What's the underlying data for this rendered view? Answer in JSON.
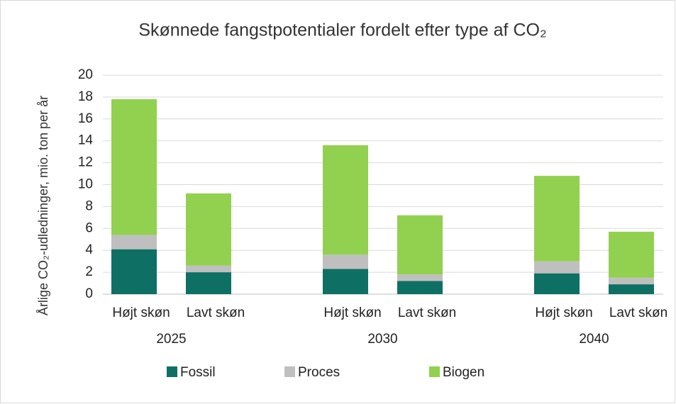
{
  "chart_data": {
    "type": "stacked_bar",
    "title": "Skønnede fangstpotentialer fordelt efter type af CO₂",
    "y_label": "Årlige CO₂-udledninger, mio. ton per år",
    "groups": [
      "2025",
      "2030",
      "2040"
    ],
    "categories": [
      "Højt skøn",
      "Lavt skøn",
      "Højt skøn",
      "Lavt skøn",
      "Højt skøn",
      "Lavt skøn"
    ],
    "series": [
      {
        "name": "Fossil",
        "color": "#0e7064",
        "values": [
          4.1,
          2.0,
          2.3,
          1.2,
          1.9,
          0.9
        ]
      },
      {
        "name": "Proces",
        "color": "#bfbfbf",
        "values": [
          1.3,
          0.6,
          1.3,
          0.6,
          1.1,
          0.6
        ]
      },
      {
        "name": "Biogen",
        "color": "#92d050",
        "values": [
          12.4,
          6.6,
          10.0,
          5.4,
          7.8,
          4.2
        ]
      }
    ],
    "ylim": [
      0,
      20
    ],
    "yticks": [
      0,
      2,
      4,
      6,
      8,
      10,
      12,
      14,
      16,
      18,
      20
    ],
    "grid": true,
    "legend": "bottom"
  }
}
